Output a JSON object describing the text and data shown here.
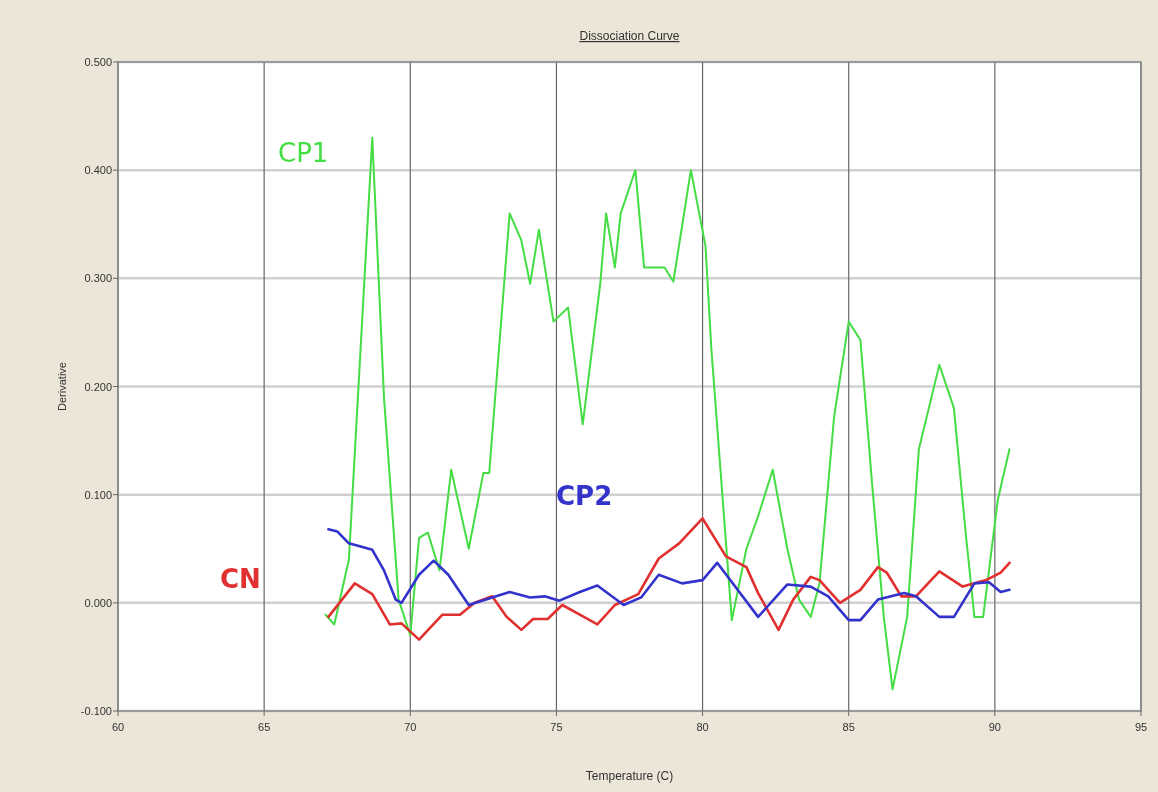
{
  "chart_data": {
    "type": "line",
    "title": "Dissociation Curve",
    "xlabel": "Temperature (C)",
    "ylabel": "Derivative",
    "xlim": [
      60,
      95
    ],
    "xticks": [
      60,
      65,
      70,
      75,
      80,
      85,
      90,
      95
    ],
    "ylim": [
      -0.1,
      0.5
    ],
    "yticks": [
      {
        "value": -0.1,
        "label": "-0.100"
      },
      {
        "value": 0,
        "label": "0.000"
      },
      {
        "value": 0.1,
        "label": "0.100"
      },
      {
        "value": 0.2,
        "label": "0.200"
      },
      {
        "value": 0.3,
        "label": "0.300"
      },
      {
        "value": 0.4,
        "label": "0.400"
      },
      {
        "value": 0.5,
        "label": "0.500"
      }
    ],
    "grid": true,
    "legend": false,
    "marker": "none",
    "line_style": "solid",
    "series": [
      {
        "name": "CP1",
        "color": "#44dd44",
        "x": [
          67.1,
          67.4,
          67.9,
          68.7,
          69.1,
          69.6,
          70.0,
          70.3,
          70.6,
          71.0,
          71.4,
          72.0,
          72.5,
          72.7,
          73.4,
          73.8,
          74.1,
          74.4,
          74.9,
          75.4,
          75.9,
          76.5,
          76.7,
          77.0,
          77.2,
          77.7,
          78.0,
          78.7,
          79.0,
          79.6,
          80.1,
          80.3,
          81.0,
          81.5,
          81.9,
          82.4,
          82.9,
          83.3,
          83.7,
          84.0,
          84.5,
          85.0,
          85.4,
          85.8,
          86.2,
          86.5,
          87.0,
          87.4,
          88.1,
          88.6,
          89.0,
          89.3,
          89.6,
          90.1,
          90.5
        ],
        "values": [
          -0.011,
          -0.02,
          0.04,
          0.43,
          0.19,
          0.003,
          -0.03,
          0.06,
          0.065,
          0.03,
          0.123,
          0.05,
          0.12,
          0.12,
          0.36,
          0.335,
          0.295,
          0.345,
          0.26,
          0.273,
          0.165,
          0.295,
          0.36,
          0.31,
          0.36,
          0.4,
          0.31,
          0.31,
          0.297,
          0.4,
          0.33,
          0.235,
          -0.016,
          0.05,
          0.08,
          0.123,
          0.05,
          0.003,
          -0.013,
          0.018,
          0.172,
          0.26,
          0.243,
          0.11,
          -0.013,
          -0.08,
          -0.013,
          0.142,
          0.22,
          0.18,
          0.065,
          -0.013,
          -0.013,
          0.095,
          0.142
        ]
      },
      {
        "name": "CN",
        "color": "#e03030",
        "x": [
          67.2,
          68.1,
          68.7,
          69.3,
          69.7,
          70.3,
          71.1,
          71.7,
          72.2,
          72.8,
          73.3,
          73.8,
          74.2,
          74.7,
          75.2,
          75.8,
          76.4,
          77.0,
          77.8,
          78.5,
          79.2,
          80.0,
          80.8,
          81.5,
          81.9,
          82.6,
          83.1,
          83.7,
          84.0,
          84.7,
          85.4,
          86.0,
          86.3,
          86.8,
          87.3,
          88.1,
          88.9,
          89.7,
          90.2,
          90.5
        ],
        "values": [
          -0.013,
          0.018,
          0.008,
          -0.02,
          -0.019,
          -0.034,
          -0.011,
          -0.011,
          0.0,
          0.006,
          -0.013,
          -0.025,
          -0.015,
          -0.015,
          -0.002,
          -0.011,
          -0.02,
          -0.002,
          0.008,
          0.041,
          0.055,
          0.078,
          0.043,
          0.033,
          0.009,
          -0.025,
          0.003,
          0.024,
          0.021,
          0.0,
          0.012,
          0.033,
          0.028,
          0.006,
          0.006,
          0.029,
          0.015,
          0.021,
          0.028,
          0.037
        ]
      },
      {
        "name": "CP2",
        "color": "#3333cc",
        "x": [
          67.2,
          67.5,
          67.9,
          68.7,
          69.1,
          69.5,
          69.7,
          70.3,
          70.8,
          71.3,
          72.0,
          72.8,
          73.4,
          74.1,
          74.6,
          75.1,
          75.8,
          76.4,
          77.3,
          77.9,
          78.5,
          79.3,
          80.0,
          80.5,
          81.9,
          82.9,
          83.7,
          84.3,
          85.0,
          85.4,
          86.0,
          86.9,
          87.3,
          88.1,
          88.6,
          89.3,
          89.8,
          90.2,
          90.5
        ],
        "values": [
          0.068,
          0.066,
          0.055,
          0.049,
          0.03,
          0.003,
          0.0,
          0.026,
          0.039,
          0.026,
          -0.002,
          0.005,
          0.01,
          0.005,
          0.006,
          0.002,
          0.01,
          0.016,
          -0.002,
          0.005,
          0.026,
          0.018,
          0.021,
          0.037,
          -0.013,
          0.017,
          0.015,
          0.006,
          -0.016,
          -0.016,
          0.003,
          0.009,
          0.006,
          -0.013,
          -0.013,
          0.018,
          0.019,
          0.01,
          0.012
        ]
      }
    ]
  }
}
